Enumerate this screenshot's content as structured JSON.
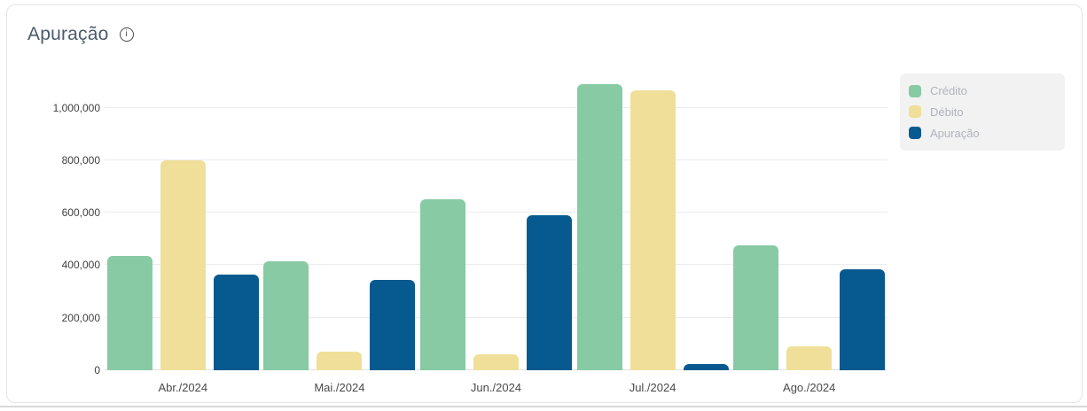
{
  "header": {
    "title": "Apuração",
    "info_icon": "i"
  },
  "colors": {
    "credito": "#87caa4",
    "debito": "#f0df99",
    "apuracao": "#075a8f",
    "legend_bg": "#f2f2f2",
    "grid": "#ececec",
    "title_text": "#4b5b6c"
  },
  "chart_data": {
    "type": "bar",
    "title": "Apuração",
    "categories": [
      "Abr./2024",
      "Mai./2024",
      "Jun./2024",
      "Jul./2024",
      "Ago./2024"
    ],
    "series": [
      {
        "name": "Crédito",
        "color": "#87caa4",
        "values": [
          435000,
          415000,
          650000,
          1090000,
          475000
        ]
      },
      {
        "name": "Débito",
        "color": "#f0df99",
        "values": [
          800000,
          70000,
          60000,
          1065000,
          90000
        ]
      },
      {
        "name": "Apuração",
        "color": "#075a8f",
        "values": [
          365000,
          345000,
          590000,
          25000,
          385000
        ]
      }
    ],
    "xlabel": "",
    "ylabel": "",
    "ylim": [
      0,
      1100000
    ],
    "yticks": [
      {
        "value": 0,
        "label": "0"
      },
      {
        "value": 200000,
        "label": "200,000"
      },
      {
        "value": 400000,
        "label": "400,000"
      },
      {
        "value": 600000,
        "label": "600,000"
      },
      {
        "value": 800000,
        "label": "800,000"
      },
      {
        "value": 1000000,
        "label": "1,000,000"
      }
    ],
    "grid": true,
    "legend_position": "right"
  }
}
